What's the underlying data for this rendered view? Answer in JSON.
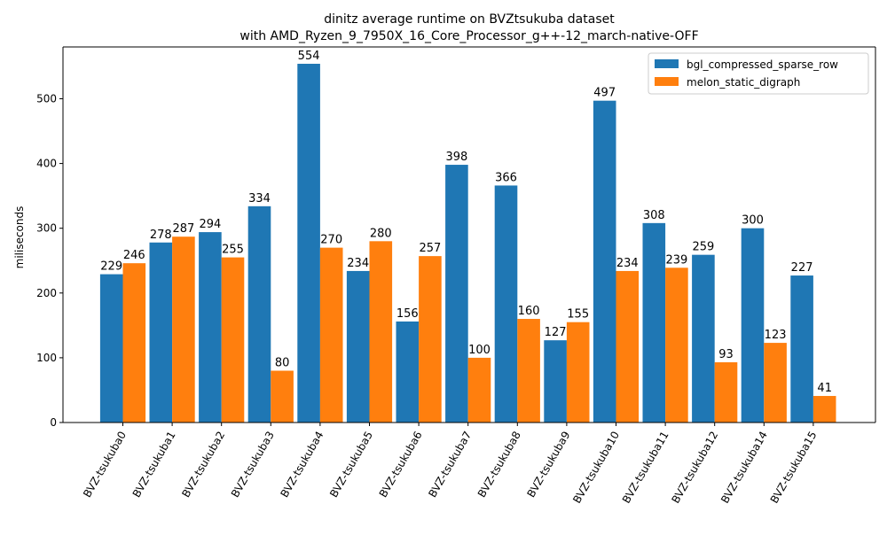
{
  "chart_data": {
    "type": "bar",
    "title": "dinitz average runtime on BVZtsukuba dataset",
    "subtitle": "with AMD_Ryzen_9_7950X_16_Core_Processor_g++-12_march-native-OFF",
    "xlabel": "",
    "ylabel": "miliseconds",
    "ylim": [
      0,
      580
    ],
    "yticks": [
      0,
      100,
      200,
      300,
      400,
      500
    ],
    "categories": [
      "BVZ-tsukuba0",
      "BVZ-tsukuba1",
      "BVZ-tsukuba2",
      "BVZ-tsukuba3",
      "BVZ-tsukuba4",
      "BVZ-tsukuba5",
      "BVZ-tsukuba6",
      "BVZ-tsukuba7",
      "BVZ-tsukuba8",
      "BVZ-tsukuba9",
      "BVZ-tsukuba10",
      "BVZ-tsukuba11",
      "BVZ-tsukuba12",
      "BVZ-tsukuba14",
      "BVZ-tsukuba15"
    ],
    "series": [
      {
        "name": "bgl_compressed_sparse_row",
        "color": "#1f77b4",
        "values": [
          229,
          278,
          294,
          334,
          554,
          234,
          156,
          398,
          366,
          127,
          497,
          308,
          259,
          300,
          227
        ]
      },
      {
        "name": "melon_static_digraph",
        "color": "#ff7f0e",
        "values": [
          246,
          287,
          255,
          80,
          270,
          280,
          257,
          100,
          160,
          155,
          234,
          239,
          93,
          123,
          41
        ]
      }
    ],
    "legend_position": "top-right",
    "grid": false,
    "data_labels": true
  }
}
